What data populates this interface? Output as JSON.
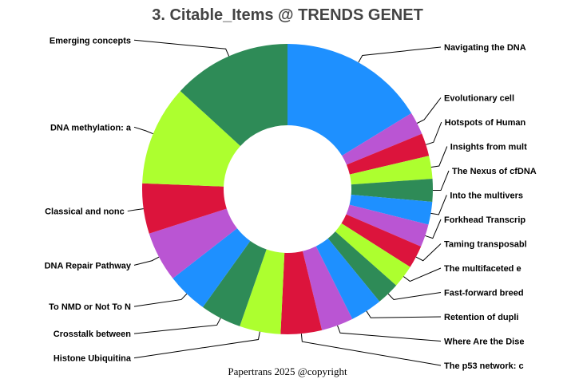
{
  "chart_data": {
    "type": "pie",
    "donut": true,
    "title": "3. Citable_Items @ TRENDS GENET",
    "footer": "Papertrans 2025 @copyright",
    "slices": [
      {
        "label": "Navigating the DNA",
        "value": 16,
        "color": "#1E90FF"
      },
      {
        "label": "Evolutionary cell",
        "value": 2.5,
        "color": "#BA55D3"
      },
      {
        "label": "Hotspots of Human",
        "value": 2.5,
        "color": "#DC143C"
      },
      {
        "label": "Insights from mult",
        "value": 2.5,
        "color": "#ADFF2F"
      },
      {
        "label": "The Nexus of cfDNA",
        "value": 2.5,
        "color": "#2E8B57"
      },
      {
        "label": "Into the multivers",
        "value": 2.5,
        "color": "#1E90FF"
      },
      {
        "label": "Forkhead Transcrip",
        "value": 2.5,
        "color": "#BA55D3"
      },
      {
        "label": "Taming transposabl",
        "value": 2.5,
        "color": "#DC143C"
      },
      {
        "label": "The multifaceted e",
        "value": 2.5,
        "color": "#ADFF2F"
      },
      {
        "label": "Fast-forward breed",
        "value": 2.5,
        "color": "#2E8B57"
      },
      {
        "label": "Retention of dupli",
        "value": 3.5,
        "color": "#1E90FF"
      },
      {
        "label": "Where Are the Dise",
        "value": 3.5,
        "color": "#BA55D3"
      },
      {
        "label": "The p53 network: c",
        "value": 4.5,
        "color": "#DC143C"
      },
      {
        "label": "Histone Ubiquitina",
        "value": 4.5,
        "color": "#ADFF2F"
      },
      {
        "label": "Crosstalk between ",
        "value": 4.5,
        "color": "#2E8B57"
      },
      {
        "label": "To NMD or Not To N",
        "value": 4.5,
        "color": "#1E90FF"
      },
      {
        "label": "DNA Repair Pathway",
        "value": 5.5,
        "color": "#BA55D3"
      },
      {
        "label": "Classical and nonc",
        "value": 5.5,
        "color": "#DC143C"
      },
      {
        "label": "DNA methylation: a",
        "value": 11,
        "color": "#ADFF2F"
      },
      {
        "label": "Emerging concepts",
        "value": 13,
        "color": "#2E8B57"
      }
    ]
  }
}
